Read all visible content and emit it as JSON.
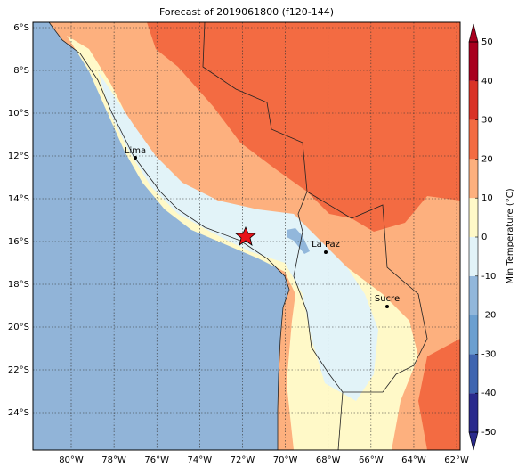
{
  "map": {
    "title": "Forecast of 2019061800 (f120-144)",
    "xticks": [
      {
        "value": -80,
        "label": "80°W"
      },
      {
        "value": -78,
        "label": "78°W"
      },
      {
        "value": -76,
        "label": "76°W"
      },
      {
        "value": -74,
        "label": "74°W"
      },
      {
        "value": -72,
        "label": "72°W"
      },
      {
        "value": -70,
        "label": "70°W"
      },
      {
        "value": -68,
        "label": "68°W"
      },
      {
        "value": -66,
        "label": "66°W"
      },
      {
        "value": -64,
        "label": "64°W"
      },
      {
        "value": -62,
        "label": "62°W"
      }
    ],
    "yticks": [
      {
        "value": -6,
        "label": "6°S"
      },
      {
        "value": -8,
        "label": "8°S"
      },
      {
        "value": -10,
        "label": "10°S"
      },
      {
        "value": -12,
        "label": "12°S"
      },
      {
        "value": -14,
        "label": "14°S"
      },
      {
        "value": -16,
        "label": "16°S"
      },
      {
        "value": -18,
        "label": "18°S"
      },
      {
        "value": -20,
        "label": "20°S"
      },
      {
        "value": -22,
        "label": "22°S"
      },
      {
        "value": -24,
        "label": "24°S"
      }
    ],
    "cities": [
      "Lima",
      "La Paz",
      "Sucre"
    ],
    "colorbar": {
      "label": "Min Temperature (°C)",
      "ticks": [
        -50,
        -40,
        -30,
        -20,
        -10,
        0,
        10,
        20,
        30,
        40,
        50
      ],
      "colors": [
        "#2a2a8c",
        "#3f65b0",
        "#6b9fd0",
        "#92b7db",
        "#e2f3f8",
        "#fff9c8",
        "#fdb07e",
        "#f36b42",
        "#d93226",
        "#a8001f"
      ]
    }
  }
}
